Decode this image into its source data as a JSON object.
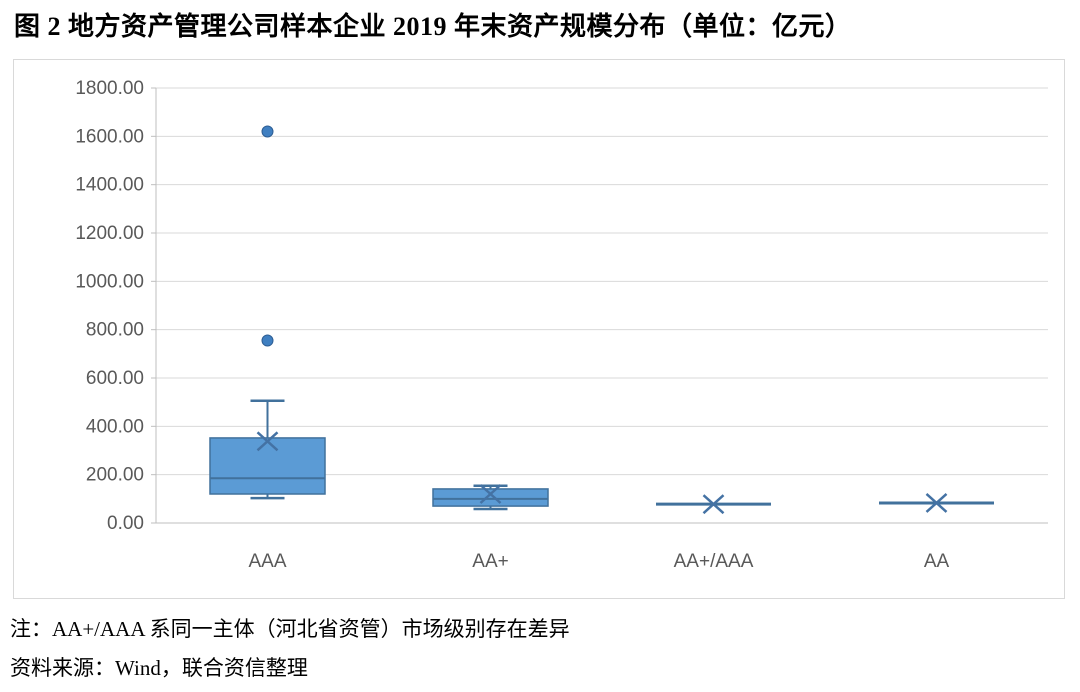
{
  "title": "图 2  地方资产管理公司样本企业 2019 年末资产规模分布（单位：亿元）",
  "notes": {
    "note": "注：AA+/AAA 系同一主体（河北省资管）市场级别存在差异",
    "source": "资料来源：Wind，联合资信整理"
  },
  "colors": {
    "box_fill": "#5B9BD5",
    "box_stroke": "#41719C",
    "median_stroke": "#41719C",
    "whisker_stroke": "#41719C",
    "mean_marker": "#4472A4",
    "outlier_fill": "#3F7FC1",
    "outlier_stroke": "#2E5E94",
    "gridline": "#D9D9D9",
    "axis_line": "#BFBFBF",
    "tick_label": "#595959",
    "frame_border": "#D9D9D9",
    "title_text": "#000000"
  },
  "chart_data": {
    "type": "boxplot",
    "title": "图 2  地方资产管理公司样本企业 2019 年末资产规模分布（单位：亿元）",
    "unit": "亿元",
    "categories": [
      "AAA",
      "AA+",
      "AA+/AAA",
      "AA"
    ],
    "xlabel": "",
    "ylabel": "",
    "ylim": [
      0,
      1800
    ],
    "ytick_step": 200,
    "ytick_labels": [
      "0.00",
      "200.00",
      "400.00",
      "600.00",
      "800.00",
      "1000.00",
      "1200.00",
      "1400.00",
      "1600.00",
      "1800.00"
    ],
    "grid": "horizontal",
    "legend": "none",
    "series": [
      {
        "category": "AAA",
        "whisker_low": 103,
        "q1": 120,
        "median": 185,
        "q3": 352,
        "mean": 338,
        "whisker_high": 506,
        "outliers": [
          755,
          1620
        ]
      },
      {
        "category": "AA+",
        "whisker_low": 58,
        "q1": 70,
        "median": 100,
        "q3": 141,
        "mean": 120,
        "whisker_high": 154,
        "outliers": []
      },
      {
        "category": "AA+/AAA",
        "whisker_low": 78,
        "q1": 78,
        "median": 78,
        "q3": 78,
        "mean": 78,
        "whisker_high": 78,
        "outliers": []
      },
      {
        "category": "AA",
        "whisker_low": 83,
        "q1": 83,
        "median": 83,
        "q3": 83,
        "mean": 83,
        "whisker_high": 83,
        "outliers": []
      }
    ]
  }
}
